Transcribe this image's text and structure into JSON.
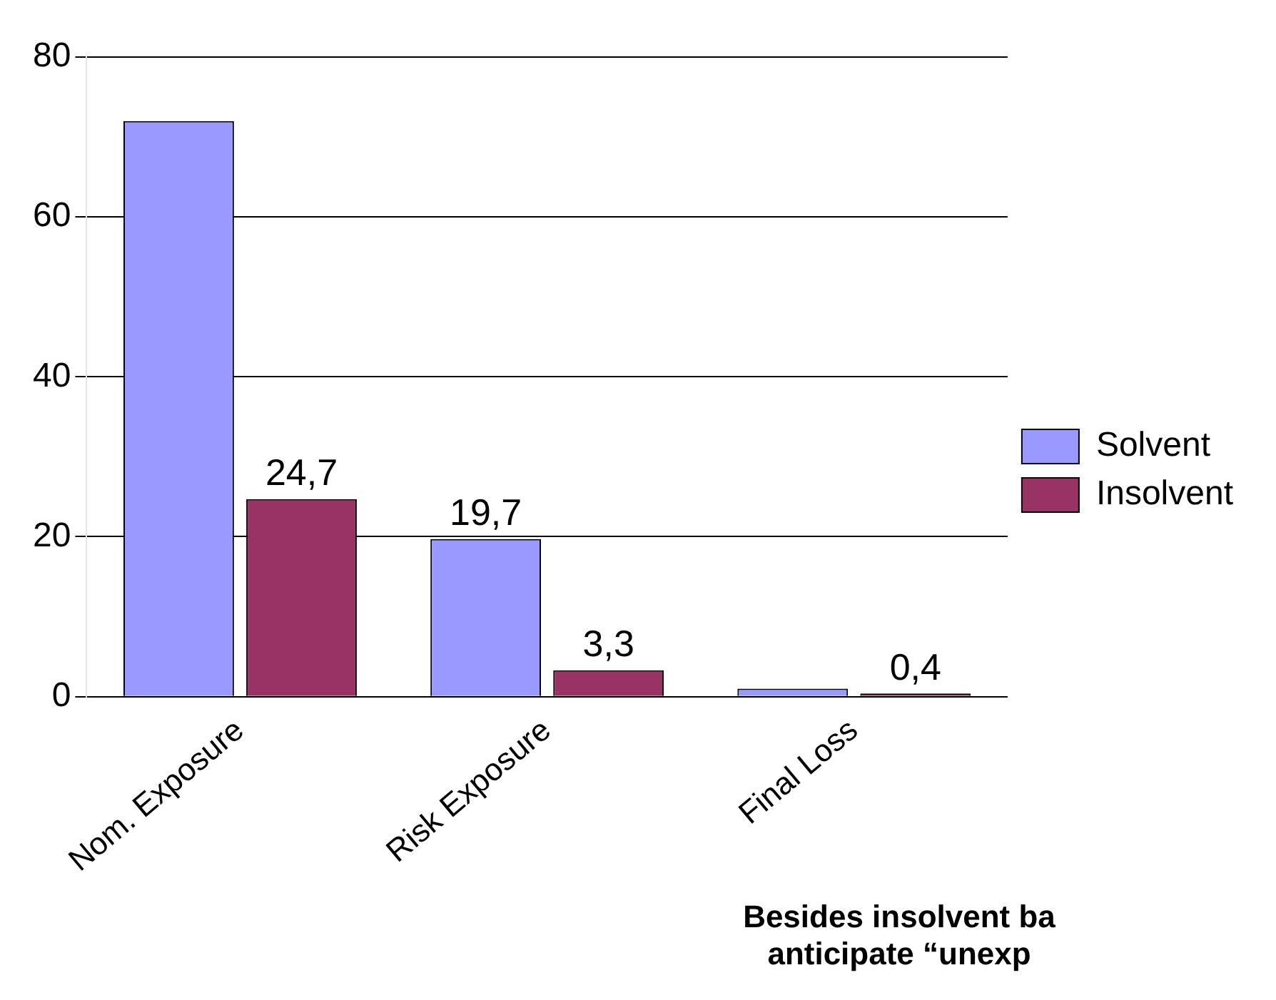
{
  "chart_data": {
    "type": "bar",
    "categories": [
      "Nom. Exposure",
      "Risk Exposure",
      "Final Loss"
    ],
    "series": [
      {
        "name": "Solvent",
        "color": "#9999ff",
        "values": [
          72,
          19.7,
          1
        ],
        "value_labels": [
          null,
          "19,7",
          null
        ]
      },
      {
        "name": "Insolvent",
        "color": "#993366",
        "values": [
          24.7,
          3.3,
          0.4
        ],
        "value_labels": [
          "24,7",
          "3,3",
          "0,4"
        ]
      }
    ],
    "ylim": [
      0,
      80
    ],
    "yticks": [
      0,
      20,
      40,
      60,
      80
    ],
    "grid": "y",
    "legend": "right",
    "annotations": [
      "Besides insolvent ba",
      "anticipate “unexp"
    ]
  }
}
